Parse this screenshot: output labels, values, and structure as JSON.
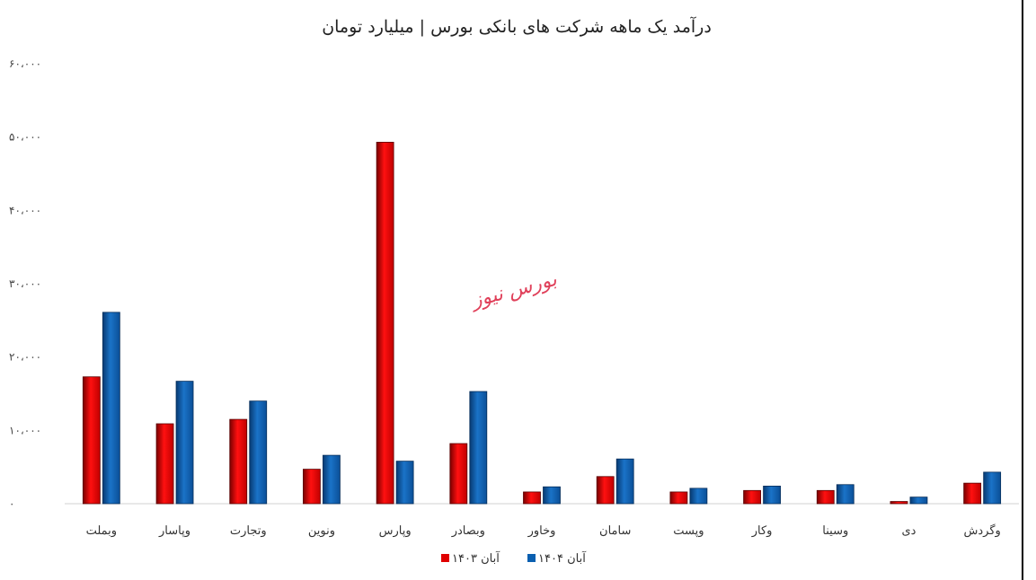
{
  "chart_data": {
    "type": "bar",
    "title": "درآمد یک ماهه شرکت های بانکی بورس | میلیارد تومان",
    "categories": [
      "وبملت",
      "وپاسار",
      "وتجارت",
      "ونوین",
      "وپارس",
      "وبصادر",
      "وخاور",
      "سامان",
      "وپست",
      "وکار",
      "وسینا",
      "دی",
      "وگردش"
    ],
    "series": [
      {
        "name": "آبان ۱۴۰۳",
        "color": "#e00000",
        "values": [
          17300,
          10900,
          11500,
          4700,
          49300,
          8200,
          1600,
          3700,
          1600,
          1800,
          1800,
          300,
          2800
        ]
      },
      {
        "name": "آبان ۱۴۰۴",
        "color": "#0a5fb0",
        "values": [
          26100,
          16700,
          14000,
          6600,
          5800,
          15300,
          2300,
          6100,
          2100,
          2400,
          2600,
          900,
          4300
        ]
      }
    ],
    "ylim": [
      0,
      60000
    ],
    "yticks": [
      "۰",
      "۱۰،۰۰۰",
      "۲۰،۰۰۰",
      "۳۰،۰۰۰",
      "۴۰،۰۰۰",
      "۵۰،۰۰۰",
      "۶۰،۰۰۰"
    ],
    "grid": false,
    "legend_position": "bottom"
  },
  "watermark": "بورس نیوز"
}
